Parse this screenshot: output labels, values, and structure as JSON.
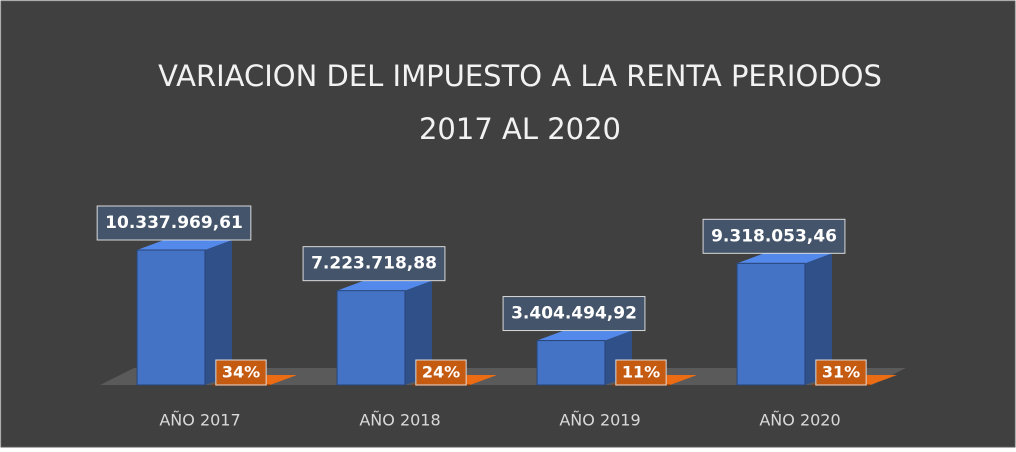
{
  "chart_data": {
    "type": "bar3d",
    "title": [
      "VARIACION  DEL IMPUESTO A LA RENTA PERIODOS",
      "2017 AL 2020"
    ],
    "categories": [
      "AÑO 2017",
      "AÑO 2018",
      "AÑO 2019",
      "AÑO 2020"
    ],
    "series": [
      {
        "color": "#4472c4",
        "values": [
          10337969.61,
          7223718.88,
          3404494.92,
          9318053.46
        ],
        "value_labels": [
          "10.337.969,61",
          "7.223.718,88",
          "3.404.494,92",
          "9.318.053,46"
        ]
      },
      {
        "color": "#c55a11",
        "values": [
          34,
          24,
          11,
          31
        ],
        "value_labels": [
          "34%",
          "24%",
          "11%",
          "31%"
        ]
      }
    ]
  }
}
